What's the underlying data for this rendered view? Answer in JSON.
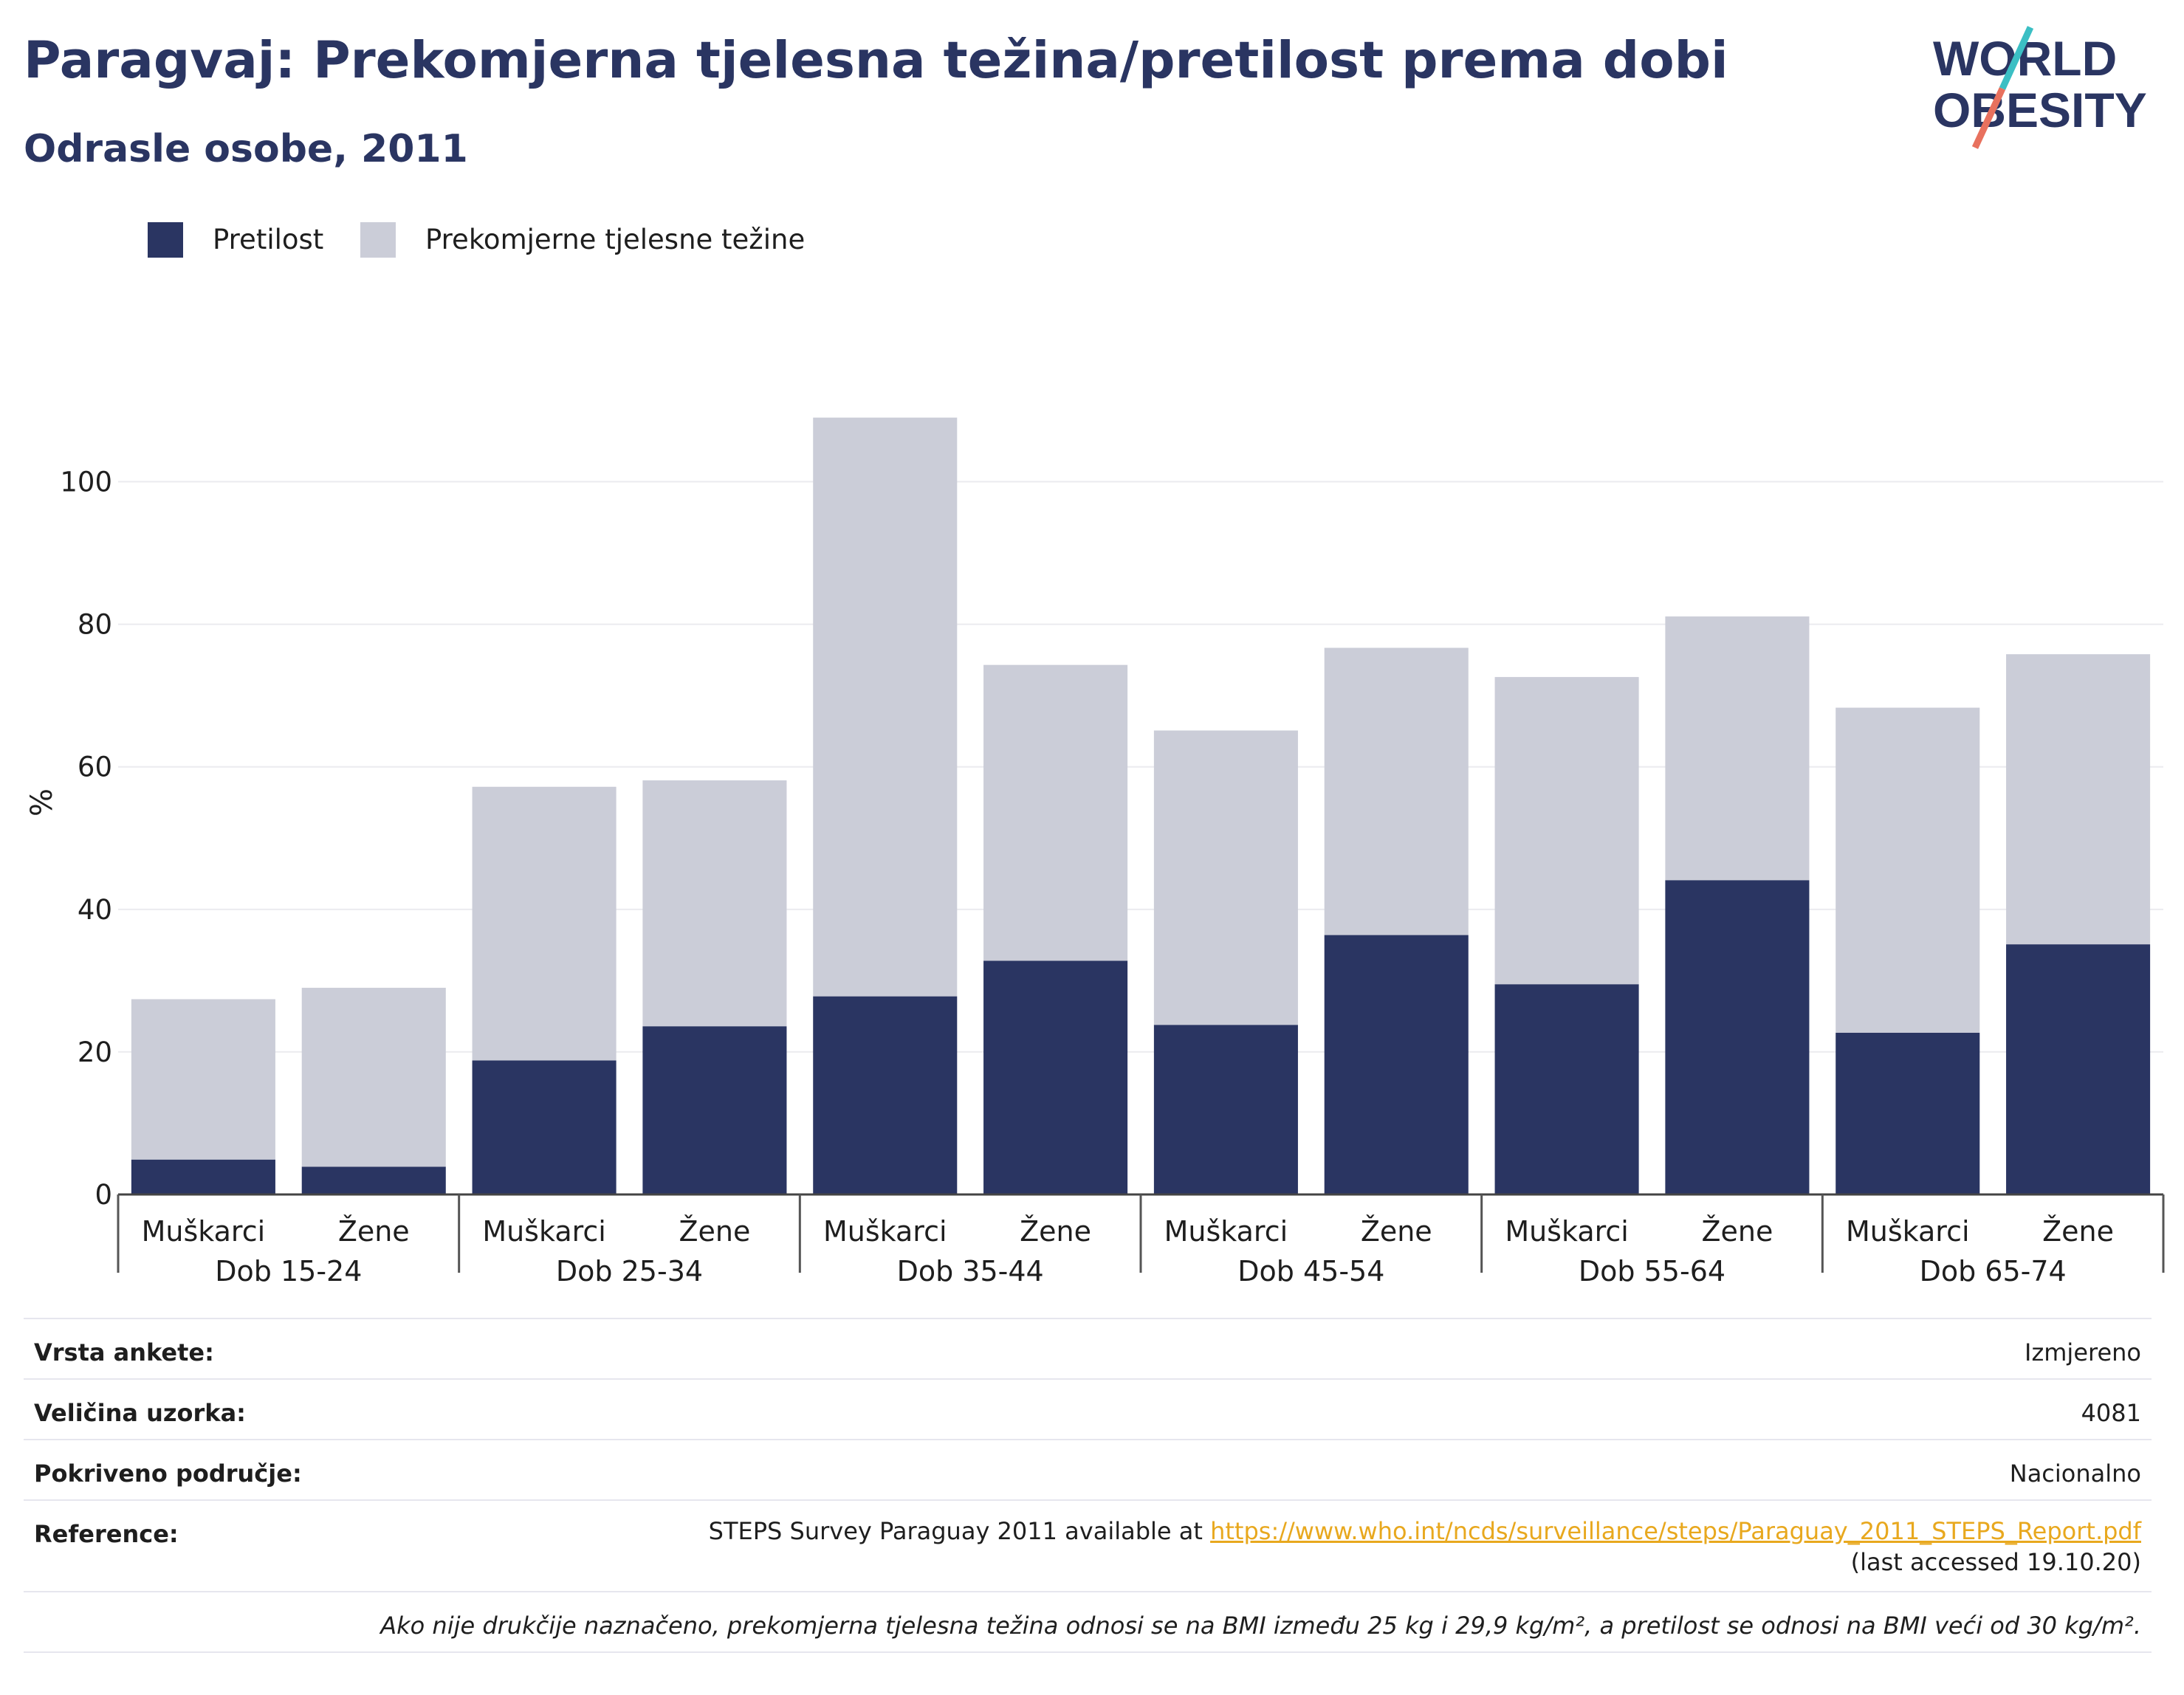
{
  "header": {
    "title": "Paragvaj: Prekomjerna tjelesna težina/pretilost prema dobi",
    "subtitle": "Odrasle osobe, 2011"
  },
  "logo": {
    "line1": "WORLD",
    "line2": "OBESITY"
  },
  "colors": {
    "title": "#2a3562",
    "obesity": "#2a3562",
    "overweight": "#cbcdd8",
    "logo_teal": "#3bbfc4",
    "logo_coral": "#e8715e",
    "link": "#e8a81e"
  },
  "chart_data": {
    "type": "bar",
    "stacked": true,
    "ylabel": "%",
    "ylim": [
      0,
      110
    ],
    "yticks": [
      0,
      20,
      40,
      60,
      80,
      100
    ],
    "grid": true,
    "legend_position": "top-left",
    "groups": [
      "Dob 15-24",
      "Dob 25-34",
      "Dob 35-44",
      "Dob 45-54",
      "Dob 55-64",
      "Dob 65-74"
    ],
    "subcategories": [
      "Muškarci",
      "Žene"
    ],
    "series": [
      {
        "name": "Pretilost",
        "values": [
          4.9,
          3.9,
          18.8,
          23.6,
          27.8,
          32.8,
          23.8,
          36.4,
          29.5,
          44.1,
          22.7,
          35.1
        ]
      },
      {
        "name": "Prekomjerne tjelesne težine",
        "values": [
          22.5,
          25.1,
          38.4,
          34.5,
          81.2,
          41.5,
          41.3,
          40.3,
          43.1,
          37.0,
          45.6,
          40.7
        ]
      }
    ]
  },
  "info": {
    "survey_type_label": "Vrsta ankete:",
    "survey_type_value": "Izmjereno",
    "sample_size_label": "Veličina uzorka:",
    "sample_size_value": "4081",
    "coverage_label": "Pokriveno područje:",
    "coverage_value": "Nacionalno",
    "reference_label": "Reference:",
    "reference_prefix": "STEPS Survey Paraguay 2011 available at ",
    "reference_link": "https://www.who.int/ncds/surveillance/steps/Paraguay_2011_STEPS_Report.pdf",
    "reference_suffix": " (last accessed 19.10.20)",
    "note": "Ako nije drukčije naznačeno, prekomjerna tjelesna težina odnosi se na BMI između 25 kg i 29,9 kg/m², a pretilost se odnosi na BMI veći od 30 kg/m²."
  }
}
